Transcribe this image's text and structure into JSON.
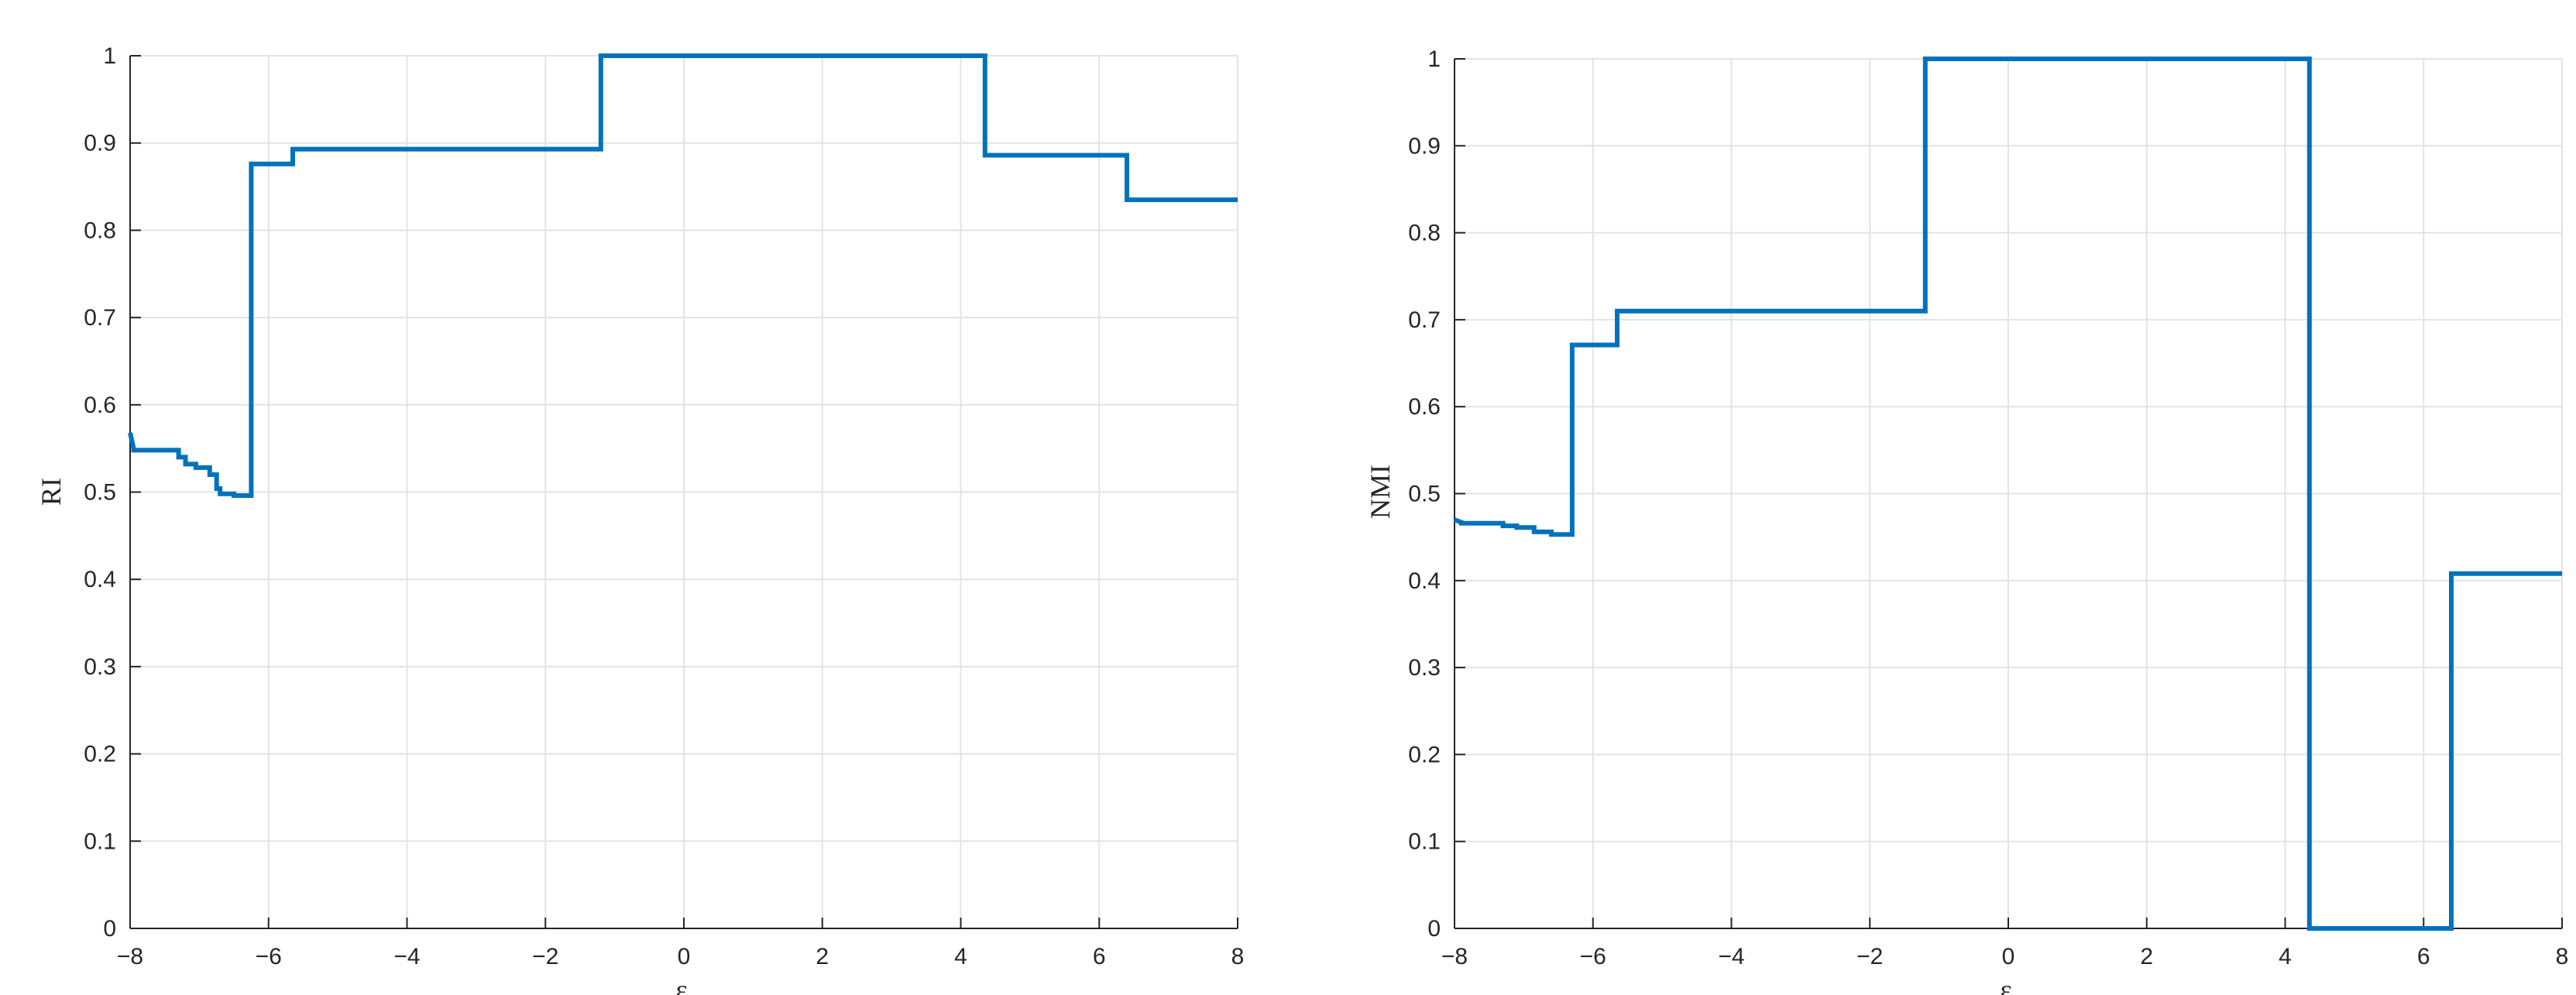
{
  "colors": {
    "series": "#0072BD",
    "grid": "#e3e3e3",
    "axis": "#262626"
  },
  "chart_data": [
    {
      "type": "line",
      "title": "",
      "xlabel": "ε",
      "ylabel": "RI",
      "xlim": [
        -8,
        8
      ],
      "ylim": [
        0,
        1
      ],
      "grid": true,
      "xticks": [
        -8,
        -6,
        -4,
        -2,
        0,
        2,
        4,
        6,
        8
      ],
      "yticks": [
        0,
        0.1,
        0.2,
        0.3,
        0.4,
        0.5,
        0.6,
        0.7,
        0.8,
        0.9,
        1
      ],
      "xtick_labels": [
        "−8",
        "−6",
        "−4",
        "−2",
        "0",
        "2",
        "4",
        "6",
        "8"
      ],
      "ytick_labels": [
        "0",
        "0.1",
        "0.2",
        "0.3",
        "0.4",
        "0.5",
        "0.6",
        "0.7",
        "0.8",
        "0.9",
        "1"
      ],
      "series": [
        {
          "x": [
            -8,
            -7.95,
            -7.95,
            -7.3,
            -7.3,
            -7.2,
            -7.2,
            -7.05,
            -7.05,
            -6.85,
            -6.85,
            -6.75,
            -6.75,
            -6.7,
            -6.7,
            -6.5,
            -6.5,
            -6.25,
            -6.25,
            -5.65,
            -5.65,
            -1.2,
            -1.2,
            4.35,
            4.35,
            6.4,
            6.4,
            8
          ],
          "y": [
            0.568,
            0.55,
            0.548,
            0.548,
            0.54,
            0.54,
            0.532,
            0.532,
            0.528,
            0.528,
            0.52,
            0.52,
            0.504,
            0.504,
            0.498,
            0.498,
            0.496,
            0.496,
            0.876,
            0.876,
            0.893,
            0.893,
            1.0,
            1.0,
            0.886,
            0.886,
            0.835,
            0.835
          ]
        }
      ]
    },
    {
      "type": "line",
      "title": "",
      "xlabel": "ε",
      "ylabel": "NMI",
      "xlim": [
        -8,
        8
      ],
      "ylim": [
        0,
        1
      ],
      "grid": true,
      "xticks": [
        -8,
        -6,
        -4,
        -2,
        0,
        2,
        4,
        6,
        8
      ],
      "yticks": [
        0,
        0.1,
        0.2,
        0.3,
        0.4,
        0.5,
        0.6,
        0.7,
        0.8,
        0.9,
        1
      ],
      "xtick_labels": [
        "−8",
        "−6",
        "−4",
        "−2",
        "0",
        "2",
        "4",
        "6",
        "8"
      ],
      "ytick_labels": [
        "0",
        "0.1",
        "0.2",
        "0.3",
        "0.4",
        "0.5",
        "0.6",
        "0.7",
        "0.8",
        "0.9",
        "1"
      ],
      "series": [
        {
          "x": [
            -8,
            -7.9,
            -7.9,
            -7.3,
            -7.3,
            -7.1,
            -7.1,
            -6.85,
            -6.85,
            -6.6,
            -6.6,
            -6.3,
            -6.3,
            -5.65,
            -5.65,
            -1.2,
            -1.2,
            4.35,
            4.35,
            6.4,
            6.4,
            8
          ],
          "y": [
            0.47,
            0.467,
            0.466,
            0.466,
            0.463,
            0.463,
            0.461,
            0.461,
            0.456,
            0.456,
            0.453,
            0.453,
            0.671,
            0.671,
            0.71,
            0.71,
            1.0,
            1.0,
            0.0,
            0.0,
            0.408,
            0.408
          ]
        }
      ]
    }
  ]
}
